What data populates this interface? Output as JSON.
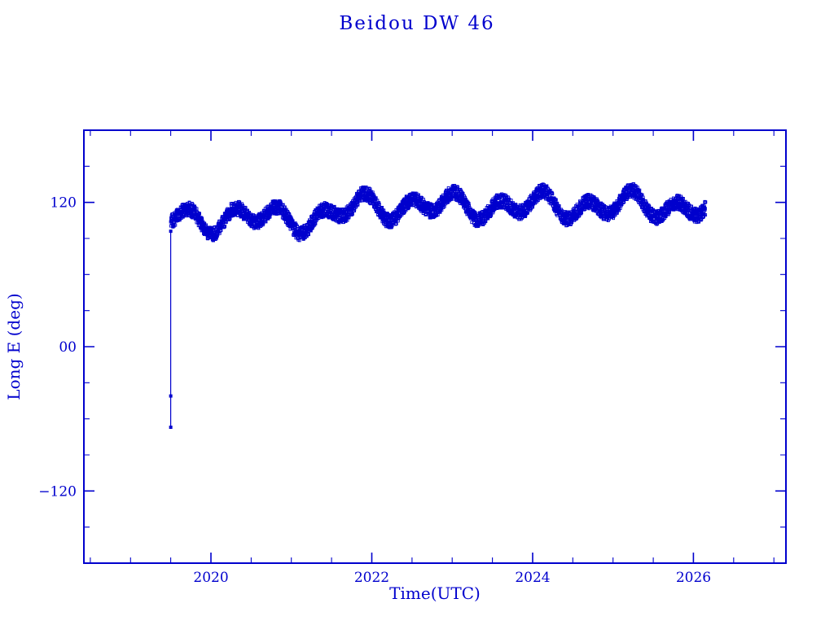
{
  "page": {
    "background": "#ffffff"
  },
  "chart_data": {
    "type": "scatter",
    "title": "Beidou DW 46",
    "xlabel": "Time(UTC)",
    "ylabel": "Long E (deg)",
    "xlim": [
      2018.42,
      2027.15
    ],
    "ylim": [
      -180,
      180
    ],
    "x_major_ticks": [
      2020,
      2022,
      2024,
      2026
    ],
    "x_tick_labels": [
      "2020",
      "2022",
      "2024",
      "2026"
    ],
    "x_minor_step": 0.5,
    "y_major_ticks": [
      120,
      0,
      -120
    ],
    "y_tick_labels": [
      "120",
      "00",
      "−120"
    ],
    "y_minor_step": 30,
    "grid": false,
    "legend": "none",
    "axis_color": "#0000cd",
    "marker_color": "#0000cd",
    "series": [
      {
        "name": "geo-longitude-band",
        "kind": "band",
        "x_start": 2019.5,
        "x_end": 2026.15,
        "n_points": 4200,
        "mean_early": 107,
        "mean_late": 117,
        "mean_transition": [
          2021.45,
          2021.85
        ],
        "wobble1_amplitude": 8,
        "wobble1_period": 0.55,
        "wobble2_amplitude": 5,
        "wobble2_period": 1.15,
        "noise": 6,
        "seed": 20190617
      },
      {
        "name": "launch-drift-track",
        "kind": "line_points",
        "points": [
          [
            2019.5,
            -67
          ],
          [
            2019.5,
            -41
          ],
          [
            2019.5,
            96
          ]
        ]
      }
    ]
  }
}
